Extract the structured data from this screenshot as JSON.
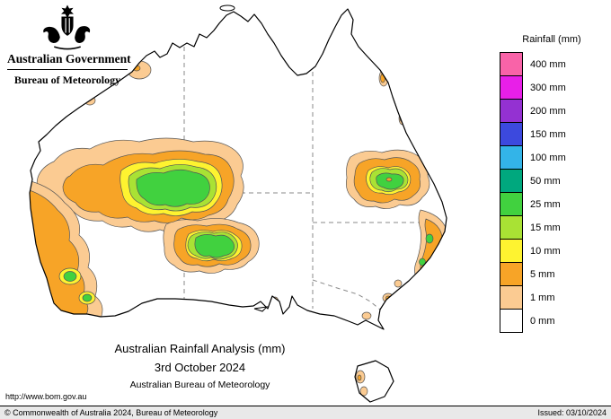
{
  "header": {
    "gov_title": "Australian Government",
    "dept_title": "Bureau of Meteorology"
  },
  "legend": {
    "title": "Rainfall (mm)",
    "entries": [
      {
        "label": "400 mm",
        "color": "#f963a8"
      },
      {
        "label": "300 mm",
        "color": "#e81fe8"
      },
      {
        "label": "200 mm",
        "color": "#9431d2"
      },
      {
        "label": "150 mm",
        "color": "#3c49de"
      },
      {
        "label": "100 mm",
        "color": "#33b4e8"
      },
      {
        "label": "50 mm",
        "color": "#00a87e"
      },
      {
        "label": "25 mm",
        "color": "#41d13f"
      },
      {
        "label": "15 mm",
        "color": "#a9e234"
      },
      {
        "label": "10 mm",
        "color": "#fef330"
      },
      {
        "label": "5 mm",
        "color": "#f7a427"
      },
      {
        "label": "1 mm",
        "color": "#fbcb92"
      },
      {
        "label": "0 mm",
        "color": "#ffffff"
      }
    ]
  },
  "caption": {
    "line1": "Australian Rainfall Analysis (mm)",
    "line2": "3rd October 2024",
    "line3": "Australian Bureau of Meteorology"
  },
  "footer": {
    "url": "http://www.bom.gov.au",
    "copyright": "© Commonwealth of Australia 2024, Bureau of Meteorology",
    "issued": "Issued: 03/10/2024"
  },
  "map": {
    "levels": {
      "1": "#fbcb92",
      "5": "#f7a427",
      "10": "#fef330",
      "15": "#a9e234",
      "25": "#41d13f"
    }
  }
}
